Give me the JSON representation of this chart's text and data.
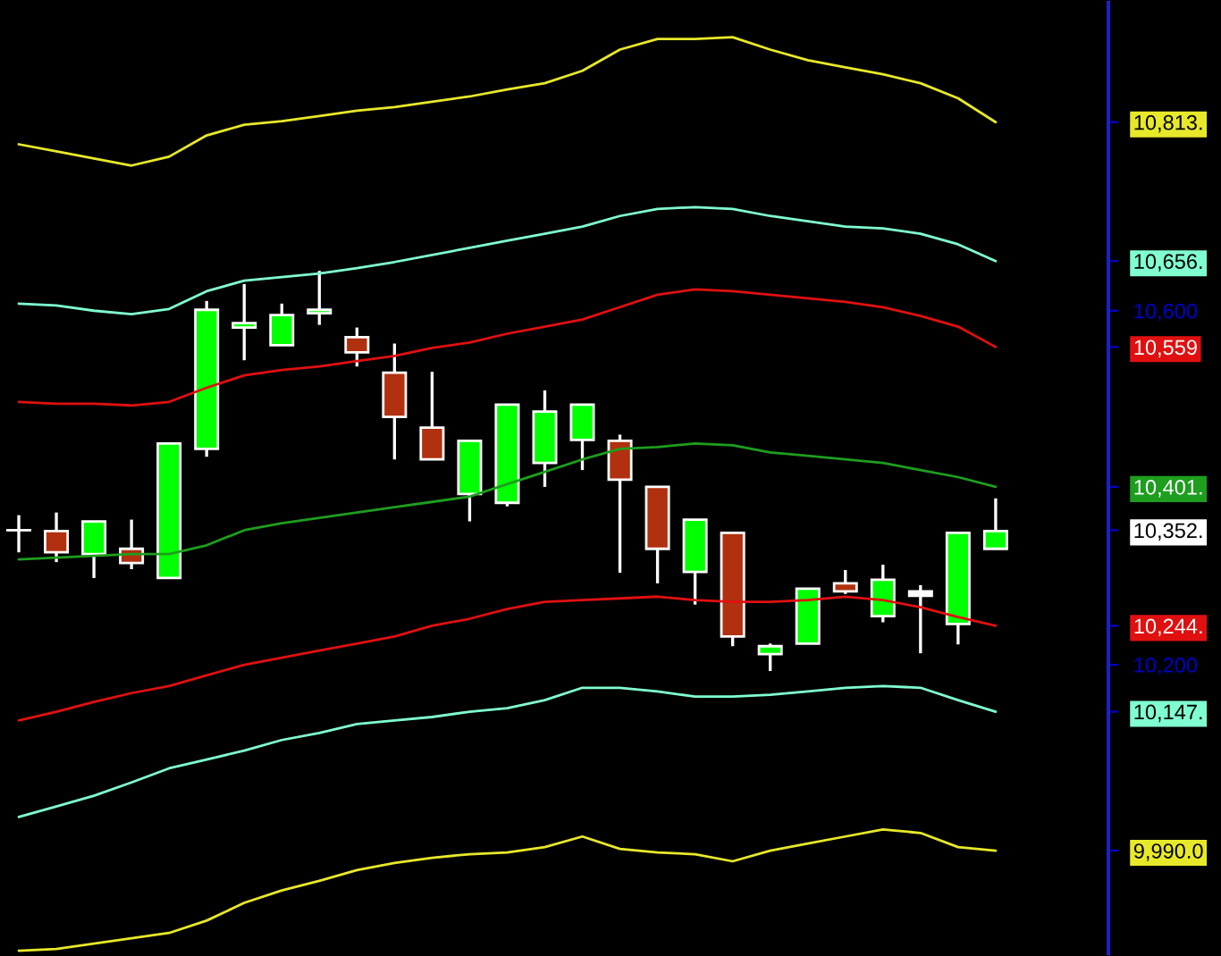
{
  "chart_data": {
    "type": "candlestick",
    "categories": [
      null,
      null,
      null,
      null,
      null,
      null,
      null,
      null,
      null,
      null,
      null,
      null,
      null,
      null,
      null,
      null,
      null,
      null,
      null,
      null,
      null,
      null,
      null,
      null,
      null,
      null,
      null
    ],
    "ohlc": [
      [
        10352,
        10369,
        10327,
        10352
      ],
      [
        10351,
        10372,
        10316,
        10327
      ],
      [
        10325,
        10362,
        10298,
        10362
      ],
      [
        10331,
        10364,
        10308,
        10315
      ],
      [
        10298,
        10450,
        10298,
        10450
      ],
      [
        10444,
        10611,
        10435,
        10601
      ],
      [
        10581,
        10630,
        10544,
        10586
      ],
      [
        10561,
        10608,
        10561,
        10595
      ],
      [
        10597,
        10645,
        10584,
        10601
      ],
      [
        10570,
        10581,
        10537,
        10553
      ],
      [
        10530,
        10563,
        10432,
        10480
      ],
      [
        10468,
        10531,
        10432,
        10432
      ],
      [
        10393,
        10453,
        10362,
        10453
      ],
      [
        10383,
        10494,
        10379,
        10494
      ],
      [
        10428,
        10510,
        10401,
        10486
      ],
      [
        10454,
        10494,
        10420,
        10494
      ],
      [
        10453,
        10460,
        10304,
        10409
      ],
      [
        10401,
        10401,
        10292,
        10331
      ],
      [
        10305,
        10364,
        10268,
        10364
      ],
      [
        10349,
        10349,
        10221,
        10232
      ],
      [
        10212,
        10224,
        10193,
        10221
      ],
      [
        10224,
        10286,
        10224,
        10286
      ],
      [
        10292,
        10307,
        10280,
        10283
      ],
      [
        10255,
        10313,
        10248,
        10296
      ],
      [
        10283,
        10290,
        10213,
        10278
      ],
      [
        10246,
        10349,
        10223,
        10349
      ],
      [
        10331,
        10388,
        10331,
        10351
      ]
    ],
    "colors": [
      "#ffffff",
      "#b0300f",
      "#00ff00",
      "#b0300f",
      "#00ff00",
      "#00ff00",
      "#00ff00",
      "#00ff00",
      "#00ff00",
      "#b0300f",
      "#b0300f",
      "#b0300f",
      "#00ff00",
      "#00ff00",
      "#00ff00",
      "#00ff00",
      "#b0300f",
      "#b0300f",
      "#00ff00",
      "#b0300f",
      "#00ff00",
      "#00ff00",
      "#b0300f",
      "#00ff00",
      "#ffffff",
      "#00ff00",
      "#00ff00"
    ],
    "series": [
      {
        "type": "line",
        "color": "#e8e82a",
        "values": [
          10788,
          10780,
          10772,
          10764,
          10774,
          10798,
          10810,
          10814,
          10820,
          10826,
          10830,
          10836,
          10842,
          10850,
          10857,
          10871,
          10895,
          10907,
          10907,
          10909,
          10895,
          10883,
          10875,
          10867,
          10857,
          10840,
          10813
        ]
      },
      {
        "type": "line",
        "color": "#80ffd0",
        "values": [
          10608,
          10606,
          10600,
          10596,
          10602,
          10622,
          10634,
          10638,
          10642,
          10648,
          10655,
          10663,
          10671,
          10679,
          10687,
          10695,
          10707,
          10715,
          10717,
          10715,
          10707,
          10701,
          10695,
          10693,
          10687,
          10675,
          10656
        ]
      },
      {
        "type": "line",
        "color": "#e01010",
        "values": [
          10497,
          10495,
          10495,
          10493,
          10497,
          10513,
          10527,
          10533,
          10537,
          10543,
          10549,
          10558,
          10564,
          10574,
          10582,
          10590,
          10604,
          10618,
          10624,
          10622,
          10618,
          10614,
          10610,
          10604,
          10594,
          10582,
          10559
        ]
      },
      {
        "type": "line",
        "color": "#1e9e1e",
        "values": [
          10319,
          10321,
          10323,
          10325,
          10325,
          10335,
          10352,
          10360,
          10366,
          10372,
          10378,
          10384,
          10390,
          10404,
          10418,
          10432,
          10444,
          10446,
          10450,
          10448,
          10440,
          10436,
          10432,
          10428,
          10420,
          10412,
          10401
        ]
      },
      {
        "type": "line",
        "color": "#e01010",
        "values": [
          10137,
          10147,
          10158,
          10168,
          10176,
          10188,
          10200,
          10208,
          10216,
          10224,
          10232,
          10244,
          10252,
          10263,
          10271,
          10273,
          10275,
          10277,
          10273,
          10271,
          10271,
          10273,
          10277,
          10273,
          10265,
          10254,
          10244
        ]
      },
      {
        "type": "line",
        "color": "#80ffd0",
        "values": [
          10028,
          10040,
          10052,
          10067,
          10083,
          10093,
          10103,
          10115,
          10123,
          10133,
          10137,
          10141,
          10147,
          10151,
          10160,
          10174,
          10174,
          10170,
          10164,
          10164,
          10166,
          10170,
          10174,
          10176,
          10174,
          10160,
          10147
        ]
      },
      {
        "type": "line",
        "color": "#e8e82a",
        "values": [
          9877,
          9879,
          9885,
          9891,
          9897,
          9911,
          9931,
          9945,
          9956,
          9968,
          9976,
          9982,
          9986,
          9988,
          9994,
          10006,
          9992,
          9988,
          9986,
          9978,
          9990,
          9998,
          10006,
          10014,
          10010,
          9994,
          9990
        ]
      }
    ],
    "ylim": [
      9871,
      10951
    ],
    "yticks": [
      {
        "value": 9990,
        "label": "9,990.0"
      },
      {
        "value": 10147,
        "label": "10,147."
      },
      {
        "value": 10200,
        "label": "10,200"
      },
      {
        "value": 10244,
        "label": "10,244."
      },
      {
        "value": 10352,
        "label": "10,352."
      },
      {
        "value": 10401,
        "label": "10,401."
      },
      {
        "value": 10559,
        "label": "10,559"
      },
      {
        "value": 10600,
        "label": "10,600"
      },
      {
        "value": 10656,
        "label": "10,656."
      },
      {
        "value": 10813,
        "label": "10,813."
      }
    ],
    "tick_labels": "y",
    "grid": false
  }
}
